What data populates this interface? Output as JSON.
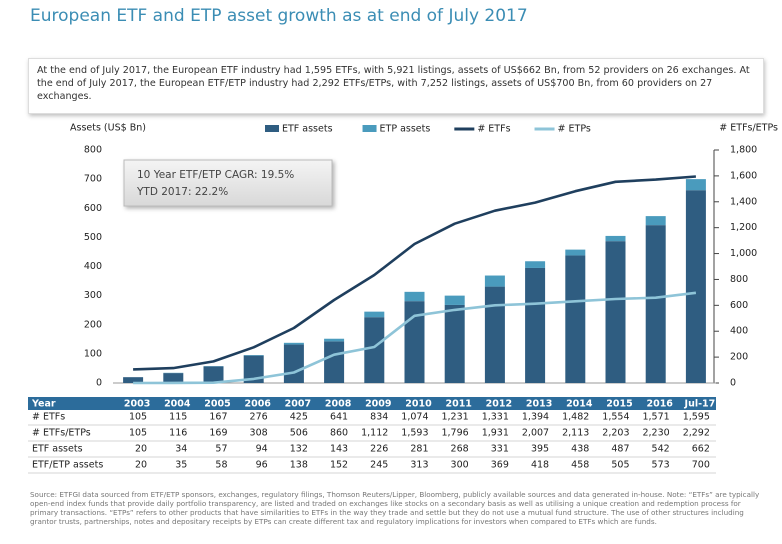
{
  "title": "European ETF and ETP asset growth as at end of July 2017",
  "intro": "At the end of July 2017, the European ETF industry had 1,595 ETFs, with 5,921 listings, assets of US$662 Bn, from 52 providers on 26 exchanges. At the end of July 2017, the European ETF/ETP industry had 2,292 ETFs/ETPs, with 7,252 listings, assets of US$700 Bn, from 60 providers on 27 exchanges.",
  "chart_data": {
    "type": "combo",
    "y_label": "Assets (US$ Bn)",
    "y2_label": "# ETFs/ETPs",
    "annotations": [
      "10 Year ETF/ETP CAGR: 19.5%",
      "YTD 2017: 22.2%"
    ],
    "categories": [
      "2003",
      "2004",
      "2005",
      "2006",
      "2007",
      "2008",
      "2009",
      "2010",
      "2011",
      "2012",
      "2013",
      "2014",
      "2015",
      "2016",
      "Jul-17"
    ],
    "series": [
      {
        "name": "ETF assets",
        "type": "bar",
        "color": "#2f5d81",
        "values": [
          20,
          34,
          57,
          94,
          132,
          143,
          226,
          281,
          268,
          331,
          395,
          438,
          487,
          542,
          662
        ]
      },
      {
        "name": "ETP assets",
        "type": "bar",
        "color": "#4a9bbd",
        "values": [
          0,
          1,
          1,
          2,
          6,
          9,
          19,
          32,
          32,
          38,
          23,
          20,
          18,
          31,
          38
        ]
      },
      {
        "name": "# ETFs",
        "type": "line",
        "axis": "y2",
        "color": "#1f3f5e",
        "values": [
          105,
          115,
          167,
          276,
          425,
          641,
          834,
          1074,
          1231,
          1331,
          1394,
          1482,
          1554,
          1571,
          1595
        ]
      },
      {
        "name": "# ETPs",
        "type": "line",
        "axis": "y2",
        "color": "#8ec4d8",
        "values": [
          0,
          1,
          2,
          32,
          81,
          219,
          278,
          519,
          565,
          600,
          613,
          631,
          649,
          659,
          697
        ]
      }
    ],
    "ylim": [
      0,
      800
    ],
    "yticks": [
      0,
      100,
      200,
      300,
      400,
      500,
      600,
      700,
      800
    ],
    "y2lim": [
      0,
      1800
    ],
    "y2ticks": [
      0,
      200,
      400,
      600,
      800,
      {
        "value": 1000,
        "label": "1,000"
      },
      {
        "value": 1200,
        "label": "1,200"
      },
      {
        "value": 1400,
        "label": "1,400"
      },
      {
        "value": 1600,
        "label": "1,600"
      },
      {
        "value": 1800,
        "label": "1,800"
      }
    ]
  },
  "table": {
    "header": "Year",
    "rows": [
      [
        "# ETFs",
        "105",
        "115",
        "167",
        "276",
        "425",
        "641",
        "834",
        "1,074",
        "1,231",
        "1,331",
        "1,394",
        "1,482",
        "1,554",
        "1,571",
        "1,595"
      ],
      [
        "# ETFs/ETPs",
        "105",
        "116",
        "169",
        "308",
        "506",
        "860",
        "1,112",
        "1,593",
        "1,796",
        "1,931",
        "2,007",
        "2,113",
        "2,203",
        "2,230",
        "2,292"
      ],
      [
        "ETF assets",
        "20",
        "34",
        "57",
        "94",
        "132",
        "143",
        "226",
        "281",
        "268",
        "331",
        "395",
        "438",
        "487",
        "542",
        "662"
      ],
      [
        "ETF/ETP assets",
        "20",
        "35",
        "58",
        "96",
        "138",
        "152",
        "245",
        "313",
        "300",
        "369",
        "418",
        "458",
        "505",
        "573",
        "700"
      ]
    ]
  },
  "source": "Source: ETFGI data sourced from ETF/ETP sponsors, exchanges, regulatory filings, Thomson Reuters/Lipper, Bloomberg, publicly available sources and data generated in-house. Note: “ETFs” are typically open-end index funds that provide daily portfolio transparency, are listed and traded on exchanges like stocks on a secondary basis as well as utilising a unique creation and redemption process for primary transactions. “ETPs” refers to other products that have similarities to ETFs in the way they trade and settle but they do not use a mutual fund structure. The use of other structures including grantor trusts, partnerships, notes and depositary receipts by ETPs can create different tax and regulatory implications for investors when compared to ETFs which are funds."
}
